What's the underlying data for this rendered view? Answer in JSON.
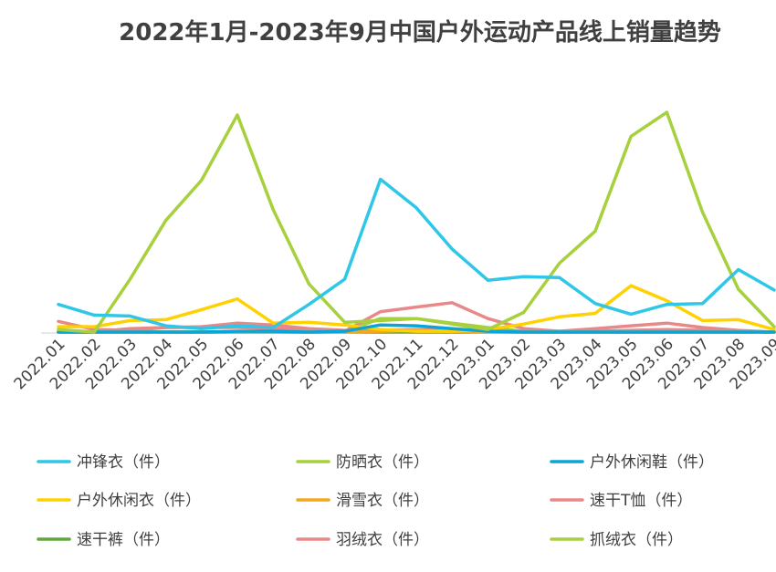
{
  "chart_data": {
    "type": "line",
    "title": "2022年1月-2023年9月中国户外运动产品线上销量趋势",
    "xlabel": "",
    "ylabel": "",
    "grid": false,
    "legend_position": "bottom",
    "ylim": [
      0,
      100
    ],
    "categories": [
      "2022.01",
      "2022.02",
      "2022.03",
      "2022.04",
      "2022.05",
      "2022.06",
      "2022.07",
      "2022.08",
      "2022.09",
      "2022.10",
      "2022.11",
      "2022.12",
      "2023.01",
      "2023.02",
      "2023.03",
      "2023.04",
      "2023.05",
      "2023.06",
      "2023.07",
      "2023.08",
      "2023.09"
    ],
    "series": [
      {
        "name": "冲锋衣（件）",
        "color": "#2EC7E8",
        "values": [
          13.1,
          8.2,
          7.8,
          3.3,
          2.0,
          3.3,
          2.5,
          13.1,
          24.7,
          70.5,
          57.4,
          38.5,
          24.2,
          25.8,
          25.4,
          13.5,
          8.6,
          13.1,
          13.5,
          29.1,
          19.7
        ]
      },
      {
        "name": "防晒衣（件）",
        "color": "#A7D03D",
        "values": [
          1.6,
          0.4,
          24.6,
          51.6,
          70.1,
          100,
          56.6,
          22.5,
          4.9,
          5.7,
          6.6,
          4.1,
          1.6,
          9.4,
          32.0,
          46.7,
          90.2,
          101.2,
          55.3,
          20.1,
          2.9
        ]
      },
      {
        "name": "户外休闲鞋（件）",
        "color": "#0AA5D8",
        "values": [
          0.4,
          0.4,
          0.4,
          0.4,
          0.4,
          0.8,
          0.8,
          0.4,
          0.8,
          3.7,
          3.3,
          2.0,
          0.8,
          0.4,
          0.4,
          0.4,
          0.4,
          0.4,
          0.4,
          0.4,
          0.4
        ]
      },
      {
        "name": "户外休闲衣（件）",
        "color": "#FFD100",
        "values": [
          2.9,
          2.9,
          5.7,
          6.1,
          10.7,
          15.6,
          4.5,
          4.9,
          3.7,
          1.6,
          0.8,
          0.8,
          1.6,
          4.1,
          7.4,
          9.0,
          21.7,
          14.8,
          5.7,
          6.1,
          1.6
        ]
      },
      {
        "name": "滑雪衣（件）",
        "color": "#F2A71D",
        "values": [
          0.4,
          0.4,
          0.4,
          0.4,
          0.4,
          0.4,
          0.4,
          0.4,
          0.4,
          0.8,
          1.2,
          0.8,
          0.4,
          0.4,
          0.4,
          0.4,
          0.4,
          0.4,
          0.4,
          0.4,
          0.4
        ]
      },
      {
        "name": "速干T恤（件）",
        "color": "#E88888",
        "values": [
          5.3,
          1.6,
          1.2,
          2.5,
          2.9,
          4.5,
          3.7,
          2.0,
          1.2,
          1.2,
          1.6,
          1.2,
          1.2,
          0.8,
          0.8,
          0.8,
          1.2,
          1.6,
          1.2,
          0.8,
          0.4
        ]
      },
      {
        "name": "速干裤（件）",
        "color": "#5FA83C",
        "values": [
          0.4,
          0.4,
          0.4,
          0.4,
          0.4,
          0.4,
          0.4,
          0.4,
          0.4,
          0.4,
          0.4,
          0.4,
          0.4,
          0.4,
          0.4,
          0.4,
          0.4,
          0.4,
          0.4,
          0.4,
          0.4
        ]
      },
      {
        "name": "羽绒衣（件）",
        "color": "#E88888",
        "values": [
          0.8,
          0.4,
          2.0,
          2.5,
          2.5,
          2.5,
          2.0,
          1.6,
          0.8,
          9.8,
          11.9,
          13.9,
          6.6,
          2.0,
          0.8,
          2.0,
          3.3,
          4.5,
          2.5,
          1.2,
          0.4
        ]
      },
      {
        "name": "抓绒衣（件）",
        "color": "#A7D03D",
        "values": [
          0.4,
          0.4,
          0.4,
          0.4,
          0.4,
          0.4,
          0.4,
          0.4,
          0.8,
          6.6,
          6.6,
          4.5,
          2.5,
          0.8,
          0.8,
          0.8,
          0.8,
          0.8,
          0.8,
          0.4,
          0.4
        ]
      }
    ]
  }
}
